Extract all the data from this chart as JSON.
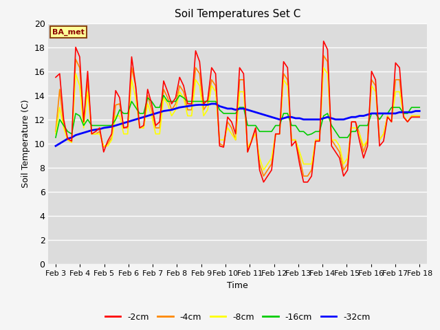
{
  "title": "Soil Temperatures Set C",
  "xlabel": "Time",
  "ylabel": "Soil Temperature (C)",
  "ylim": [
    0,
    20
  ],
  "yticks": [
    0,
    2,
    4,
    6,
    8,
    10,
    12,
    14,
    16,
    18,
    20
  ],
  "xtick_labels": [
    "Feb 3",
    "Feb 4",
    "Feb 5",
    "Feb 6",
    "Feb 7",
    "Feb 8",
    "Feb 9",
    "Feb 10",
    "Feb 11",
    "Feb 12",
    "Feb 13",
    "Feb 14",
    "Feb 15",
    "Feb 16",
    "Feb 17",
    "Feb 18"
  ],
  "annotation_text": "BA_met",
  "bg_color": "#dcdcdc",
  "grid_color": "#ffffff",
  "fig_bg_color": "#f5f5f5",
  "legend_labels": [
    "-2cm",
    "-4cm",
    "-8cm",
    "-16cm",
    "-32cm"
  ],
  "legend_colors": [
    "#ff0000",
    "#ff8800",
    "#ffff00",
    "#00cc00",
    "#0000ff"
  ],
  "line_widths": [
    1.2,
    1.2,
    1.2,
    1.2,
    2.0
  ],
  "series_2cm": [
    15.5,
    15.8,
    12.0,
    10.4,
    10.2,
    18.0,
    17.2,
    11.8,
    16.0,
    10.8,
    11.0,
    11.3,
    9.3,
    10.2,
    10.8,
    14.4,
    13.8,
    11.3,
    11.4,
    17.2,
    14.8,
    11.3,
    11.5,
    14.5,
    13.3,
    11.5,
    11.8,
    15.2,
    14.3,
    13.3,
    13.8,
    15.5,
    14.8,
    13.3,
    13.3,
    17.7,
    16.8,
    13.3,
    13.6,
    16.3,
    15.8,
    9.8,
    9.7,
    12.2,
    11.8,
    10.8,
    16.3,
    15.8,
    9.3,
    10.2,
    11.3,
    7.8,
    6.8,
    7.3,
    7.8,
    10.8,
    10.8,
    16.8,
    16.3,
    9.8,
    10.2,
    8.3,
    6.8,
    6.8,
    7.3,
    10.2,
    10.2,
    18.5,
    17.8,
    9.8,
    9.3,
    8.8,
    7.3,
    7.8,
    11.8,
    11.8,
    10.2,
    8.8,
    9.8,
    16.0,
    15.3,
    9.8,
    10.2,
    12.2,
    11.8,
    16.7,
    16.3,
    12.2,
    11.8,
    12.2,
    12.2,
    12.2
  ],
  "series_4cm": [
    11.0,
    14.5,
    11.5,
    10.3,
    10.1,
    17.0,
    16.3,
    11.5,
    15.3,
    10.8,
    10.8,
    11.0,
    9.7,
    10.0,
    10.5,
    13.2,
    13.3,
    11.3,
    11.3,
    16.3,
    14.8,
    11.3,
    11.3,
    14.0,
    12.8,
    11.3,
    11.3,
    14.5,
    13.8,
    12.8,
    13.3,
    14.8,
    14.3,
    12.8,
    12.8,
    16.3,
    15.8,
    12.8,
    13.3,
    15.3,
    14.8,
    10.0,
    9.8,
    11.8,
    11.3,
    10.3,
    15.3,
    15.3,
    9.3,
    10.3,
    11.3,
    8.3,
    7.3,
    7.8,
    8.3,
    10.8,
    10.8,
    15.8,
    15.3,
    10.3,
    10.3,
    8.8,
    7.3,
    7.3,
    7.8,
    10.3,
    10.3,
    17.3,
    16.8,
    10.3,
    9.8,
    9.3,
    7.8,
    8.3,
    11.8,
    11.8,
    10.8,
    9.3,
    10.3,
    15.3,
    14.8,
    10.3,
    10.8,
    12.3,
    11.8,
    15.3,
    15.3,
    12.3,
    11.8,
    12.3,
    12.3,
    12.3
  ],
  "series_8cm": [
    10.8,
    13.0,
    11.3,
    10.3,
    10.1,
    15.8,
    14.8,
    11.3,
    14.3,
    10.8,
    10.8,
    10.8,
    9.8,
    9.8,
    10.3,
    12.3,
    12.3,
    10.8,
    10.8,
    15.3,
    13.8,
    11.3,
    11.3,
    13.3,
    12.3,
    10.8,
    10.8,
    13.8,
    13.3,
    12.3,
    12.8,
    14.3,
    13.8,
    12.3,
    12.3,
    15.3,
    14.8,
    12.3,
    12.8,
    14.8,
    14.3,
    10.3,
    10.3,
    11.3,
    10.8,
    10.3,
    14.3,
    14.3,
    9.6,
    10.3,
    10.8,
    8.8,
    7.8,
    8.3,
    8.8,
    10.8,
    10.8,
    15.3,
    14.8,
    10.3,
    10.3,
    9.3,
    8.3,
    8.3,
    8.3,
    10.3,
    10.3,
    16.3,
    15.8,
    10.3,
    10.3,
    9.8,
    8.3,
    8.8,
    11.3,
    11.3,
    10.8,
    9.8,
    10.3,
    14.8,
    14.3,
    10.3,
    10.8,
    12.3,
    11.8,
    14.3,
    14.3,
    12.3,
    11.8,
    12.3,
    12.3,
    12.3
  ],
  "series_16cm": [
    10.5,
    12.0,
    11.5,
    11.0,
    10.8,
    12.5,
    12.3,
    11.5,
    12.0,
    11.5,
    11.5,
    11.5,
    11.5,
    11.5,
    11.5,
    12.0,
    12.8,
    12.5,
    12.5,
    13.5,
    13.0,
    12.5,
    12.5,
    13.8,
    13.5,
    13.0,
    13.0,
    14.0,
    13.5,
    13.5,
    13.5,
    14.0,
    13.8,
    13.5,
    13.5,
    13.5,
    13.5,
    13.5,
    13.5,
    13.5,
    13.5,
    12.8,
    12.5,
    12.5,
    12.5,
    12.5,
    13.0,
    13.0,
    11.5,
    11.5,
    11.5,
    11.0,
    11.0,
    11.0,
    11.0,
    11.5,
    11.5,
    12.5,
    12.5,
    11.5,
    11.5,
    11.0,
    11.0,
    10.7,
    10.8,
    11.0,
    11.0,
    12.3,
    12.5,
    11.5,
    11.0,
    10.5,
    10.5,
    10.5,
    11.0,
    11.0,
    11.5,
    11.5,
    11.5,
    12.5,
    12.5,
    12.0,
    12.5,
    12.5,
    13.0,
    13.0,
    13.0,
    12.5,
    12.5,
    13.0,
    13.0,
    13.0
  ],
  "series_32cm": [
    9.8,
    10.0,
    10.2,
    10.4,
    10.5,
    10.7,
    10.8,
    10.9,
    11.0,
    11.1,
    11.15,
    11.2,
    11.3,
    11.35,
    11.4,
    11.5,
    11.6,
    11.7,
    11.8,
    11.9,
    12.0,
    12.1,
    12.2,
    12.3,
    12.4,
    12.5,
    12.6,
    12.7,
    12.75,
    12.8,
    12.9,
    13.0,
    13.05,
    13.1,
    13.15,
    13.2,
    13.22,
    13.22,
    13.22,
    13.3,
    13.3,
    13.1,
    13.0,
    12.9,
    12.9,
    12.8,
    12.9,
    12.9,
    12.8,
    12.7,
    12.6,
    12.5,
    12.4,
    12.3,
    12.2,
    12.1,
    12.0,
    12.1,
    12.2,
    12.2,
    12.1,
    12.1,
    12.0,
    12.0,
    12.0,
    12.0,
    12.0,
    12.1,
    12.2,
    12.1,
    12.0,
    12.0,
    12.0,
    12.1,
    12.2,
    12.2,
    12.3,
    12.3,
    12.4,
    12.5,
    12.5,
    12.5,
    12.5,
    12.5,
    12.5,
    12.5,
    12.6,
    12.6,
    12.6,
    12.6,
    12.7,
    12.7
  ]
}
